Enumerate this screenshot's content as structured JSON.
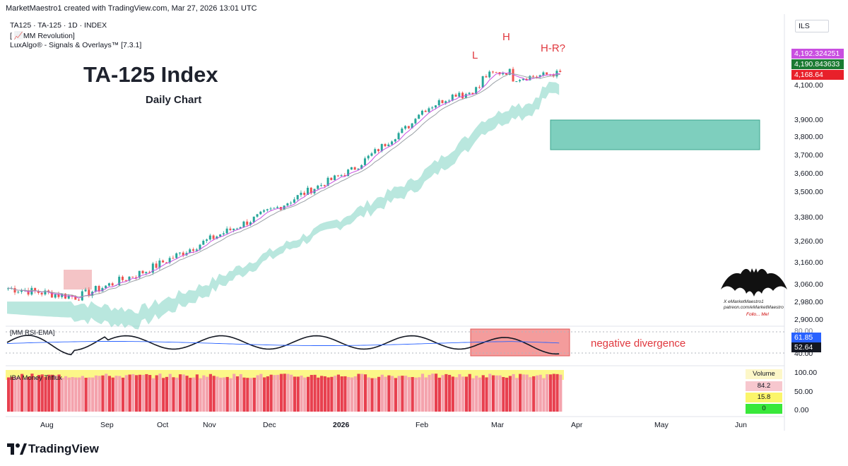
{
  "header": {
    "attribution": "MarketMaestro1 created with TradingView.com, Mar 27, 2026 13:01 UTC"
  },
  "legend": {
    "symbol_line": "TA125 · TA-125 · 1D · INDEX",
    "indicator_1": "[ 📈MM Revolution]",
    "indicator_2": "LuxAlgo® - Signals & Overlays™ [7.3.1]"
  },
  "annotations": {
    "title": "TA-125 Index",
    "subtitle": "Daily Chart",
    "left_shoulder": "L",
    "head": "H",
    "right_shoulder": "H-R?",
    "divergence": "negative divergence"
  },
  "currency": "ILS",
  "price_axis": {
    "ticks": [
      "4,100.00",
      "3,900.00",
      "3,800.00",
      "3,700.00",
      "3,600.00",
      "3,500.00",
      "3,380.00",
      "3,260.00",
      "3,160.00",
      "3,060.00",
      "2,980.00",
      "2,900.00"
    ],
    "badges": [
      {
        "label": "4,192.324251",
        "color": "#c94fe0"
      },
      {
        "label": "4,190.843633",
        "color": "#1b7a32"
      },
      {
        "label": "4,168.64",
        "color": "#e8202a"
      }
    ]
  },
  "rsi_panel": {
    "label": "[MM RSI-EMA]",
    "ticks": [
      "80.00",
      "40.00"
    ],
    "badges": [
      {
        "label": "61.85",
        "color": "#2962ff"
      },
      {
        "label": "52.64",
        "color": "#131722"
      }
    ]
  },
  "volume_panel": {
    "label": "IBA Money Triflux",
    "ticks": [
      "100.00",
      "50.00",
      "0.00"
    ],
    "table_header": "Volume",
    "table_values": [
      "84.2",
      "15.8",
      "0"
    ],
    "table_colors": [
      "#f7c7ce",
      "#fbf56a",
      "#39e83a"
    ]
  },
  "time_axis": {
    "labels": [
      "Aug",
      "Sep",
      "Oct",
      "Nov",
      "Dec",
      "2026",
      "Feb",
      "Mar",
      "Apr",
      "May",
      "Jun"
    ]
  },
  "signature": {
    "line1": "X eMarketMaestro1",
    "line2": "patreon.com/eMarketMaestro",
    "line3": "Follo... Me!"
  },
  "brand": "TradingView",
  "colors": {
    "up": "#26a69a",
    "down": "#ef5350",
    "band": "#7fd3c3",
    "target_zone": "#7ecfbe",
    "divergence_box": "#f28b8b"
  },
  "chart_data": {
    "type": "candlestick",
    "title": "TA-125 Index",
    "subtitle": "Daily Chart",
    "symbol": "TA125 · TA-125 · 1D · INDEX",
    "x_range": [
      "Jul 2025",
      "Jun 2026"
    ],
    "ylim": [
      2900,
      4200
    ],
    "close_series": {
      "months": [
        "Jul",
        "Aug",
        "Sep",
        "Oct",
        "Nov",
        "Dec",
        "Jan",
        "Feb",
        "Mar"
      ],
      "approx_close": [
        3040,
        3000,
        3120,
        3280,
        3440,
        3620,
        3920,
        4120,
        4168.64
      ]
    },
    "last_values": {
      "ema_magenta": 4192.324251,
      "ema_green": 4190.843633,
      "close": 4168.64
    },
    "target_zone": [
      3740,
      3890
    ],
    "pattern": [
      "L",
      "H",
      "H-R?"
    ],
    "rsi": {
      "last": 52.64,
      "ema": 61.85,
      "levels": [
        80,
        40
      ]
    },
    "volume_table": {
      "header": "Volume",
      "values": [
        84.2,
        15.8,
        0
      ]
    }
  }
}
